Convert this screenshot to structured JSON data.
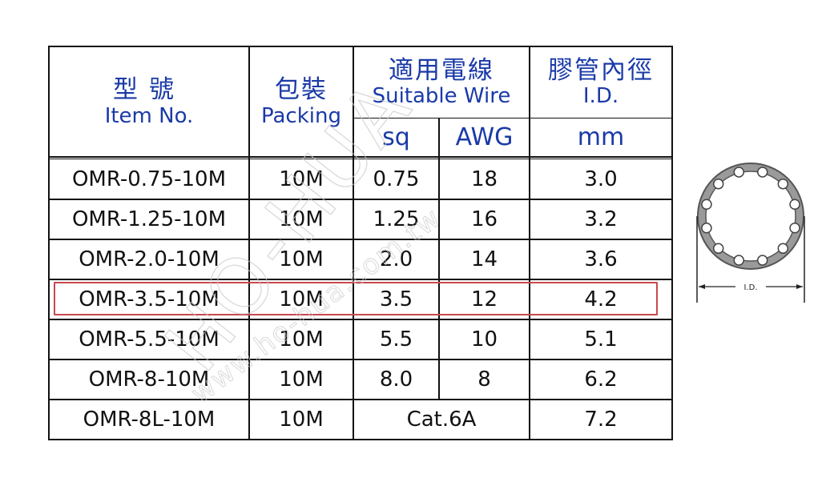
{
  "header": {
    "model_zh": "型號",
    "model_en": "Item No.",
    "packing_zh": "包裝",
    "packing_en": "Packing",
    "wire_zh": "適用電線",
    "wire_en": "Suitable Wire",
    "wire_sq": "sq",
    "wire_awg": "AWG",
    "id_zh": "膠管內徑",
    "id_en": "I.D.",
    "id_unit": "mm"
  },
  "rows": [
    {
      "model": "OMR-0.75-10M",
      "packing": "10M",
      "sq": "0.75",
      "awg": "18",
      "id": "3.0"
    },
    {
      "model": "OMR-1.25-10M",
      "packing": "10M",
      "sq": "1.25",
      "awg": "16",
      "id": "3.2"
    },
    {
      "model": "OMR-2.0-10M",
      "packing": "10M",
      "sq": "2.0",
      "awg": "14",
      "id": "3.6"
    },
    {
      "model": "OMR-3.5-10M",
      "packing": "10M",
      "sq": "3.5",
      "awg": "12",
      "id": "4.2"
    },
    {
      "model": "OMR-5.5-10M",
      "packing": "10M",
      "sq": "5.5",
      "awg": "10",
      "id": "5.1"
    },
    {
      "model": "OMR-8-10M",
      "packing": "10M",
      "sq": "8.0",
      "awg": "8",
      "id": "6.2"
    },
    {
      "model": "OMR-8L-10M",
      "packing": "10M",
      "wire": "Cat.6A",
      "id": "7.2"
    }
  ],
  "diagram": {
    "label": "I.D."
  },
  "watermark": {
    "text1": "HO-HUA",
    "text2": "www.ho-hua.com.tw"
  },
  "colors": {
    "header_text": "#1a3aa8",
    "highlight_border": "#c8484e",
    "tube_fill": "#9a9a9a",
    "border": "#111111"
  }
}
